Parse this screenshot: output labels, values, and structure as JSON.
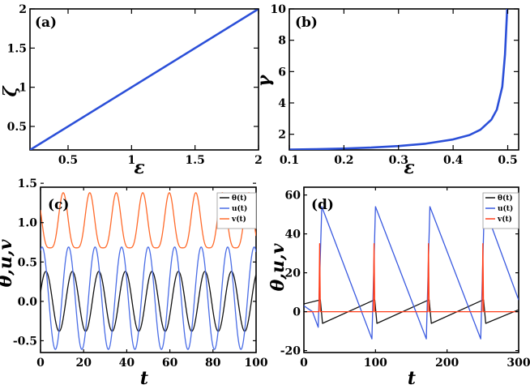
{
  "chart_data": [
    {
      "panel": "(a)",
      "type": "line",
      "xlabel": "ε",
      "ylabel": "ζ",
      "xlim": [
        0.2,
        2
      ],
      "ylim": [
        0.2,
        2
      ],
      "xticks": [
        "0.5",
        "1",
        "1.5",
        "2"
      ],
      "yticks": [
        "0.5",
        "1",
        "1.5",
        "2"
      ],
      "grid": false,
      "series": [
        {
          "color": "#2b4fd8",
          "x": [
            0.2,
            2.0
          ],
          "y": [
            0.2,
            2.0
          ]
        }
      ]
    },
    {
      "panel": "(b)",
      "type": "line",
      "xlabel": "ε",
      "ylabel": "γ",
      "xlim": [
        0.1,
        0.52
      ],
      "ylim": [
        1,
        10
      ],
      "xticks": [
        "0.1",
        "0.2",
        "0.3",
        "0.4",
        "0.5"
      ],
      "yticks": [
        "2",
        "4",
        "6",
        "8",
        "10"
      ],
      "grid": false,
      "series": [
        {
          "color": "#2b4fd8",
          "x": [
            0.1,
            0.15,
            0.2,
            0.25,
            0.3,
            0.35,
            0.4,
            0.43,
            0.45,
            0.47,
            0.48,
            0.49,
            0.495,
            0.499
          ],
          "y": [
            1.02,
            1.05,
            1.09,
            1.15,
            1.25,
            1.4,
            1.67,
            1.95,
            2.29,
            2.93,
            3.57,
            5.03,
            7.09,
            10
          ]
        }
      ]
    },
    {
      "panel": "(c)",
      "type": "line",
      "xlabel": "t",
      "ylabel": "θ,u,v",
      "xlim": [
        0,
        100
      ],
      "ylim": [
        -0.65,
        1.45
      ],
      "xticks": [
        "0",
        "20",
        "40",
        "60",
        "80",
        "100"
      ],
      "yticks": [
        "-0.5",
        "0.0",
        "0.5",
        "1.0",
        "1.5"
      ],
      "legend": "top-right",
      "grid": false,
      "series": [
        {
          "name": "θ(t)",
          "color": "#111111",
          "kind": "sin",
          "mean": 0.0,
          "amp": 0.38,
          "period": 12.3,
          "phase": 0.3
        },
        {
          "name": "u(t)",
          "color": "#4a6de6",
          "kind": "sin",
          "mean": 0.04,
          "amp": 0.65,
          "period": 12.3,
          "phase": 1.2
        },
        {
          "name": "v(t)",
          "color": "#ff6a2a",
          "kind": "peaky",
          "base": 0.68,
          "amp": 0.7,
          "period": 12.3,
          "phase": 0.9
        }
      ]
    },
    {
      "panel": "(d)",
      "type": "line",
      "xlabel": "t",
      "ylabel": "θ,u,v",
      "xlim": [
        0,
        300
      ],
      "ylim": [
        -21,
        64
      ],
      "xticks": [
        "0",
        "100",
        "200",
        "300"
      ],
      "yticks": [
        "-20",
        "0",
        "20",
        "40",
        "60"
      ],
      "legend": "top-right",
      "grid": false,
      "series": [
        {
          "name": "θ(t)",
          "color": "#111111",
          "x": [
            0,
            22,
            23,
            26,
            98,
            99,
            102,
            174,
            175,
            178,
            250,
            251,
            254,
            300
          ],
          "y": [
            4,
            6,
            6,
            -6,
            6,
            6,
            -6,
            6,
            6,
            -6,
            6,
            6,
            -6,
            1
          ]
        },
        {
          "name": "u(t)",
          "color": "#3a5ae0",
          "x": [
            0,
            12,
            20,
            25,
            95,
            100,
            171,
            176,
            247,
            252,
            300
          ],
          "y": [
            3,
            0,
            -8,
            54,
            -14,
            54,
            -14,
            54,
            -14,
            54,
            6
          ]
        },
        {
          "name": "v(t)",
          "color": "#ff3d1a",
          "x": [
            0,
            21,
            22,
            23,
            24,
            97,
            98,
            99,
            100,
            173,
            174,
            175,
            176,
            249,
            250,
            251,
            252,
            300
          ],
          "y": [
            0,
            0,
            35,
            0,
            0,
            0,
            35,
            0,
            0,
            0,
            35,
            0,
            0,
            0,
            35,
            0,
            0,
            0
          ]
        }
      ]
    }
  ]
}
